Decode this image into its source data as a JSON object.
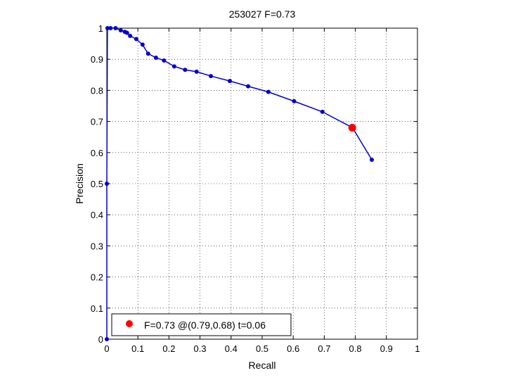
{
  "chart_data": {
    "type": "line",
    "title": "253027 F=0.73",
    "xlabel": "Recall",
    "ylabel": "Precision",
    "xlim": [
      0,
      1
    ],
    "ylim": [
      0,
      1
    ],
    "xticks": [
      0,
      0.1,
      0.2,
      0.3,
      0.4,
      0.5,
      0.6,
      0.7,
      0.8,
      0.9,
      1
    ],
    "yticks": [
      0,
      0.1,
      0.2,
      0.3,
      0.4,
      0.5,
      0.6,
      0.7,
      0.8,
      0.9,
      1
    ],
    "xtick_labels": [
      "0",
      "0.1",
      "0.2",
      "0.3",
      "0.4",
      "0.5",
      "0.6",
      "0.7",
      "0.8",
      "0.9",
      "1"
    ],
    "ytick_labels": [
      "0",
      "0.1",
      "0.2",
      "0.3",
      "0.4",
      "0.5",
      "0.6",
      "0.7",
      "0.8",
      "0.9",
      "1"
    ],
    "grid": true,
    "legend_position": "bottom-left",
    "series": [
      {
        "color": "#0000cc",
        "marker": "dot",
        "x": [
          0,
          0,
          0.002,
          0.012,
          0.028,
          0.045,
          0.058,
          0.065,
          0.075,
          0.095,
          0.115,
          0.133,
          0.158,
          0.184,
          0.217,
          0.252,
          0.289,
          0.335,
          0.396,
          0.455,
          0.52,
          0.603,
          0.694,
          0.791,
          0.853
        ],
        "y": [
          0,
          0.5,
          1.0,
          1.0,
          1.0,
          0.993,
          0.988,
          0.985,
          0.975,
          0.965,
          0.947,
          0.918,
          0.905,
          0.896,
          0.877,
          0.866,
          0.86,
          0.846,
          0.83,
          0.813,
          0.795,
          0.765,
          0.731,
          0.68,
          0.577
        ]
      }
    ],
    "highlight_point": {
      "x": 0.79,
      "y": 0.68,
      "color": "#ff0000"
    },
    "legend": {
      "label": "F=0.73 @(0.79,0.68) t=0.06",
      "marker_color": "#ff0000"
    },
    "colors": {
      "line": "#0000cc",
      "highlight": "#ff0000",
      "grid": "#000000"
    }
  }
}
